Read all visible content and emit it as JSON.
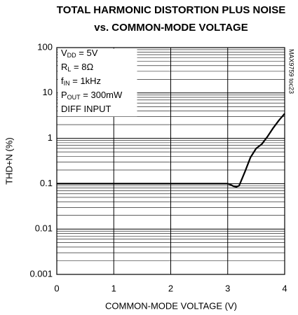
{
  "chart_data": {
    "type": "line",
    "title_lines": [
      "TOTAL HARMONIC DISTORTION PLUS NOISE",
      "vs. COMMON-MODE VOLTAGE"
    ],
    "xlabel": "COMMON-MODE VOLTAGE (V)",
    "ylabel": "THD+N (%)",
    "side_note": "MAX9759 toc23",
    "annotations": [
      {
        "main": "V",
        "sub": "DD",
        "text": " = 5V"
      },
      {
        "main": "R",
        "sub": "L",
        "text": " = 8Ω"
      },
      {
        "main": "f",
        "sub": "IN",
        "text": " = 1kHz"
      },
      {
        "main": "P",
        "sub": "OUT",
        "text": " = 300mW"
      },
      {
        "main": "DIFF INPUT"
      }
    ],
    "x": [
      0,
      0.5,
      1,
      1.5,
      2,
      2.5,
      3,
      3.05,
      3.1,
      3.15,
      3.2,
      3.3,
      3.4,
      3.5,
      3.6,
      3.7,
      3.8,
      3.9,
      4
    ],
    "series": [
      {
        "color": "#000000",
        "values": [
          0.1,
          0.1,
          0.1,
          0.1,
          0.1,
          0.1,
          0.1,
          0.095,
          0.088,
          0.085,
          0.09,
          0.18,
          0.38,
          0.6,
          0.75,
          1.1,
          1.7,
          2.5,
          3.5
        ]
      }
    ],
    "xlim": [
      0,
      4
    ],
    "xticks": [
      0,
      1,
      2,
      3,
      4
    ],
    "ylim": [
      0.001,
      100
    ],
    "yticks": [
      0.001,
      0.01,
      0.1,
      1,
      10,
      100
    ],
    "ylog": true,
    "grid": true,
    "minor_grid": true
  }
}
